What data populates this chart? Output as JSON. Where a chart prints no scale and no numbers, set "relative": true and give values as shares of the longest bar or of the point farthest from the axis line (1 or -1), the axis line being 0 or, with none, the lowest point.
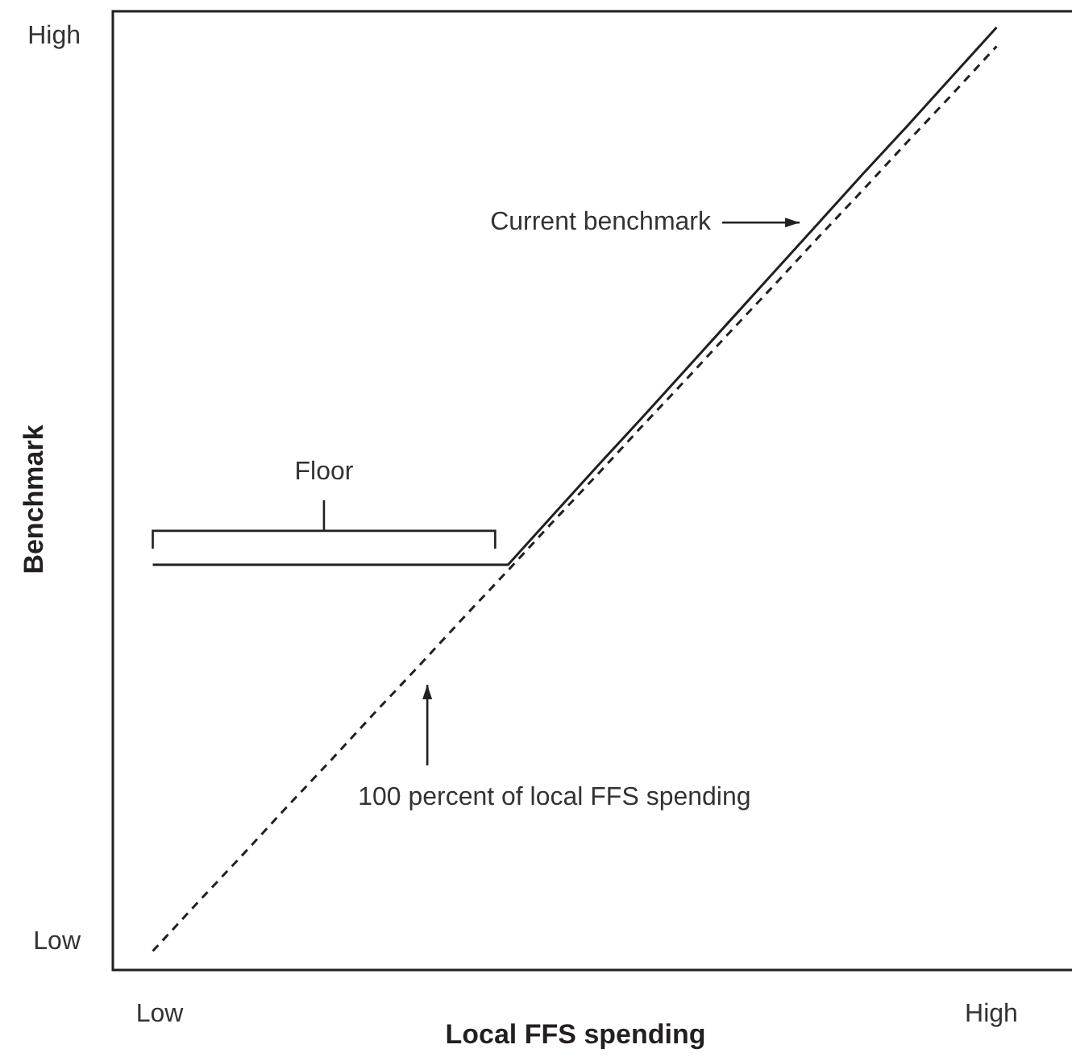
{
  "chart_data": {
    "type": "line",
    "relative": true,
    "xlabel": "Local FFS spending",
    "ylabel": "Benchmark",
    "categories": [
      null,
      null,
      null,
      null,
      null,
      null,
      null,
      null,
      null,
      null,
      null,
      null,
      null,
      null,
      null,
      null,
      null,
      null,
      null,
      null
    ],
    "series": [
      {
        "color": "#231f20",
        "values": [
          0.43,
          0.43,
          0.43,
          0.43,
          0.43,
          0.43,
          0.43,
          0.43,
          0.43,
          0.482,
          0.534,
          0.585,
          0.637,
          0.689,
          0.741,
          0.793,
          0.845,
          0.896,
          0.948,
          1.0
        ],
        "line_style": "solid"
      },
      {
        "color": "#231f20",
        "values": [
          0.02,
          0.071,
          0.121,
          0.172,
          0.222,
          0.273,
          0.323,
          0.374,
          0.424,
          0.475,
          0.525,
          0.576,
          0.626,
          0.677,
          0.727,
          0.778,
          0.828,
          0.879,
          0.929,
          0.98
        ],
        "line_style": "dashed"
      }
    ],
    "annotations": [
      "High",
      "Low",
      "Low",
      "High",
      "Current benchmark",
      "Floor",
      "100 percent of local FFS spending"
    ]
  }
}
